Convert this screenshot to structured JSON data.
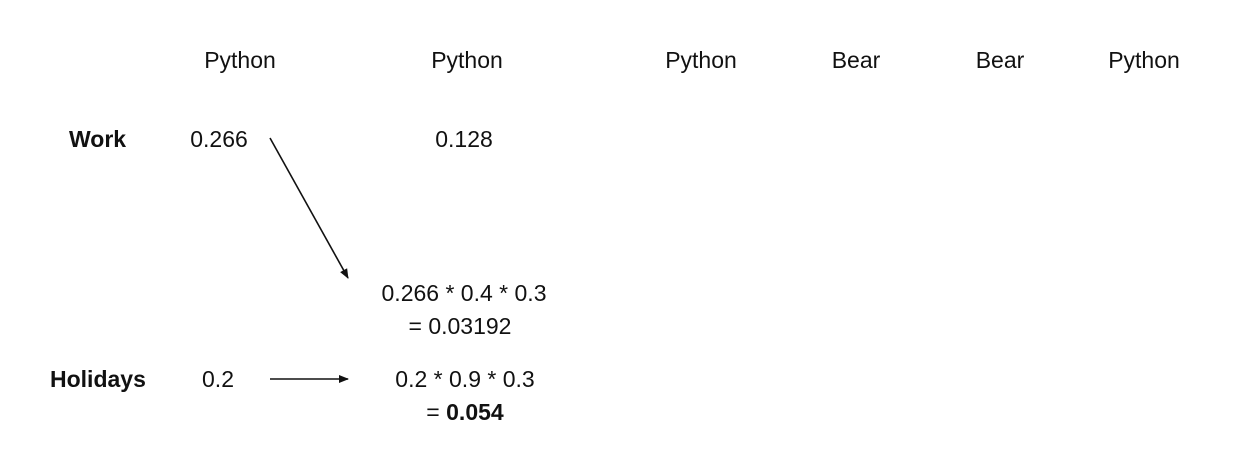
{
  "observations": [
    "Python",
    "Python",
    "Python",
    "Bear",
    "Bear",
    "Python"
  ],
  "states": {
    "work": "Work",
    "holidays": "Holidays"
  },
  "values": {
    "work_t1": "0.266",
    "work_t2": "0.128",
    "holidays_t1": "0.2"
  },
  "calculations": {
    "work_to_holidays": {
      "expression": "0.266 * 0.4 * 0.3",
      "result": "= 0.03192"
    },
    "holidays_to_holidays": {
      "expression": "0.2 * 0.9 * 0.3",
      "result_prefix": "= ",
      "result_value": "0.054"
    }
  }
}
